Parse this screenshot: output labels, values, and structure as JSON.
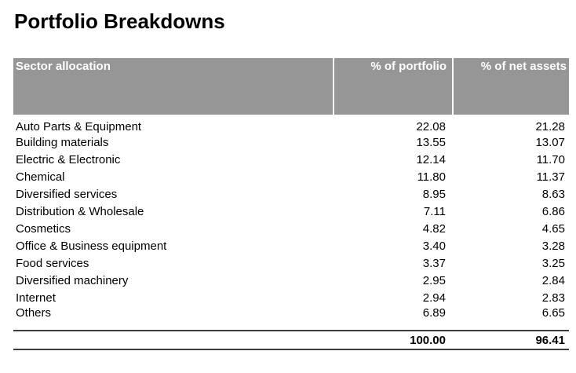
{
  "title": "Portfolio Breakdowns",
  "colors": {
    "header_bg": "#969696",
    "header_text": "#ffffff",
    "rule": "#3c3c3c",
    "body_text": "#000000",
    "page_bg": "#ffffff"
  },
  "table": {
    "columns": [
      "Sector allocation",
      "% of portfolio",
      "% of net assets"
    ],
    "rows": [
      {
        "sector": "Auto Parts & Equipment",
        "portfolio": "22.08",
        "net_assets": "21.28"
      },
      {
        "sector": "Building materials",
        "portfolio": "13.55",
        "net_assets": "13.07"
      },
      {
        "sector": "Electric & Electronic",
        "portfolio": "12.14",
        "net_assets": "11.70"
      },
      {
        "sector": "Chemical",
        "portfolio": "11.80",
        "net_assets": "11.37"
      },
      {
        "sector": "Diversified services",
        "portfolio": "8.95",
        "net_assets": "8.63"
      },
      {
        "sector": "Distribution & Wholesale",
        "portfolio": "7.11",
        "net_assets": "6.86"
      },
      {
        "sector": "Cosmetics",
        "portfolio": "4.82",
        "net_assets": "4.65"
      },
      {
        "sector": "Office & Business equipment",
        "portfolio": "3.40",
        "net_assets": "3.28"
      },
      {
        "sector": "Food services",
        "portfolio": "3.37",
        "net_assets": "3.25"
      },
      {
        "sector": "Diversified machinery",
        "portfolio": "2.95",
        "net_assets": "2.84"
      },
      {
        "sector": "Internet",
        "portfolio": "2.94",
        "net_assets": "2.83"
      },
      {
        "sector": "Others",
        "portfolio": "6.89",
        "net_assets": "6.65"
      }
    ],
    "total": {
      "portfolio": "100.00",
      "net_assets": "96.41"
    }
  }
}
